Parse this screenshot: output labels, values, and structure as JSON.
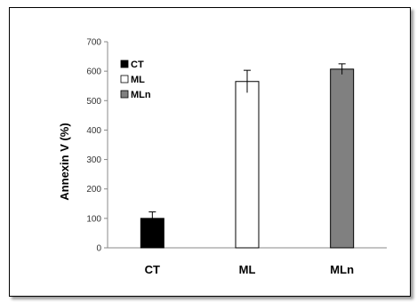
{
  "chart_data": {
    "type": "bar",
    "categories": [
      "CT",
      "ML",
      "MLn"
    ],
    "values": [
      100,
      565,
      607
    ],
    "errors": [
      22,
      38,
      18
    ],
    "colors": [
      "#000000",
      "#ffffff",
      "#808080"
    ],
    "ylabel": "Annexin V (%)",
    "xlabel": "",
    "ylim": [
      0,
      700
    ],
    "yticks": [
      0,
      100,
      200,
      300,
      400,
      500,
      600,
      700
    ],
    "grid": false,
    "legend": {
      "placement": "top-left",
      "entries": [
        {
          "label": "CT",
          "color": "#000000"
        },
        {
          "label": "ML",
          "color": "#ffffff"
        },
        {
          "label": "MLn",
          "color": "#808080"
        }
      ]
    }
  }
}
